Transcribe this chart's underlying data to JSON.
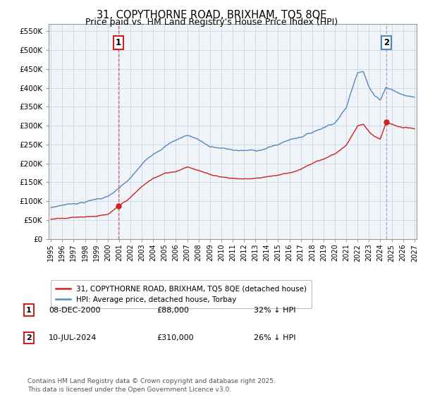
{
  "title": "31, COPYTHORNE ROAD, BRIXHAM, TQ5 8QE",
  "subtitle": "Price paid vs. HM Land Registry's House Price Index (HPI)",
  "ylabel_ticks": [
    "£0",
    "£50K",
    "£100K",
    "£150K",
    "£200K",
    "£250K",
    "£300K",
    "£350K",
    "£400K",
    "£450K",
    "£500K",
    "£550K"
  ],
  "ytick_values": [
    0,
    50000,
    100000,
    150000,
    200000,
    250000,
    300000,
    350000,
    400000,
    450000,
    500000,
    550000
  ],
  "ylim": [
    0,
    570000
  ],
  "xlim_start": 1994.8,
  "xlim_end": 2027.2,
  "background_color": "#ffffff",
  "plot_bg_color": "#f0f4f8",
  "grid_color": "#c8d8e8",
  "hpi_line_color": "#5588bb",
  "price_line_color": "#cc2222",
  "dashed_line_color_1": "#cc4444",
  "dashed_line_color_2": "#8899bb",
  "sale1": {
    "year": 2000.92,
    "price": 88000,
    "label": "1"
  },
  "sale2": {
    "year": 2024.52,
    "price": 310000,
    "label": "2"
  },
  "legend_entries": [
    "31, COPYTHORNE ROAD, BRIXHAM, TQ5 8QE (detached house)",
    "HPI: Average price, detached house, Torbay"
  ],
  "annotation1_date": "08-DEC-2000",
  "annotation1_price": "£88,000",
  "annotation1_hpi": "32% ↓ HPI",
  "annotation2_date": "10-JUL-2024",
  "annotation2_price": "£310,000",
  "annotation2_hpi": "26% ↓ HPI",
  "footer": "Contains HM Land Registry data © Crown copyright and database right 2025.\nThis data is licensed under the Open Government Licence v3.0.",
  "title_fontsize": 10.5,
  "subtitle_fontsize": 9,
  "hpi_knots": [
    1995,
    1996,
    1997,
    1998,
    1999,
    2000,
    2001,
    2002,
    2003,
    2004,
    2005,
    2006,
    2007,
    2008,
    2009,
    2010,
    2011,
    2012,
    2013,
    2014,
    2015,
    2016,
    2017,
    2018,
    2019,
    2020,
    2021,
    2022,
    2022.5,
    2023,
    2023.5,
    2024,
    2024.5,
    2025,
    2026,
    2027
  ],
  "hpi_vals": [
    82000,
    90000,
    95000,
    100000,
    108000,
    115000,
    135000,
    160000,
    195000,
    225000,
    248000,
    265000,
    278000,
    268000,
    250000,
    245000,
    240000,
    238000,
    238000,
    245000,
    255000,
    268000,
    278000,
    290000,
    305000,
    320000,
    360000,
    455000,
    462000,
    420000,
    395000,
    385000,
    420000,
    415000,
    400000,
    395000
  ],
  "price_knots": [
    1995,
    1996,
    1997,
    1998,
    1999,
    2000,
    2001,
    2002,
    2003,
    2004,
    2005,
    2006,
    2007,
    2008,
    2009,
    2010,
    2011,
    2012,
    2013,
    2014,
    2015,
    2016,
    2017,
    2018,
    2019,
    2020,
    2021,
    2022,
    2022.5,
    2023,
    2023.5,
    2024,
    2024.5,
    2025,
    2026,
    2027
  ],
  "price_vals": [
    52000,
    57000,
    60000,
    63000,
    66000,
    68000,
    88000,
    110000,
    138000,
    160000,
    172000,
    178000,
    193000,
    185000,
    172000,
    168000,
    165000,
    163000,
    165000,
    170000,
    175000,
    182000,
    192000,
    205000,
    218000,
    232000,
    255000,
    305000,
    310000,
    290000,
    275000,
    268000,
    310000,
    305000,
    295000,
    290000
  ]
}
